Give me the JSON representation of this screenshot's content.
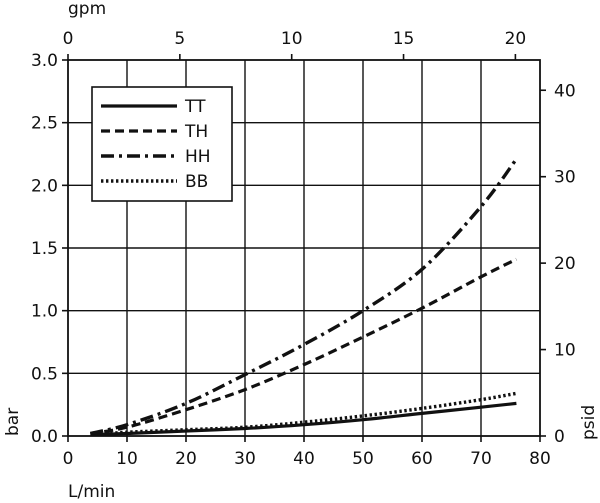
{
  "chart_data": {
    "type": "line",
    "title": "",
    "xlabel": "L/min",
    "ylabel": "bar",
    "x2label": "gpm",
    "y2label": "psid",
    "xlim": [
      0,
      80
    ],
    "ylim": [
      0,
      3.0
    ],
    "x2lim": [
      0,
      21.1
    ],
    "y2lim": [
      0,
      43.5
    ],
    "xticks": [
      "0",
      "10",
      "20",
      "30",
      "40",
      "50",
      "60",
      "70",
      "80"
    ],
    "xtick_values": [
      0,
      10,
      20,
      30,
      40,
      50,
      60,
      70,
      80
    ],
    "yticks": [
      "0.0",
      "0.5",
      "1.0",
      "1.5",
      "2.0",
      "2.5",
      "3.0"
    ],
    "ytick_values": [
      0,
      0.5,
      1.0,
      1.5,
      2.0,
      2.5,
      3.0
    ],
    "x2ticks": [
      "0",
      "5",
      "10",
      "15",
      "20"
    ],
    "x2tick_values": [
      0,
      5,
      10,
      15,
      20
    ],
    "y2ticks": [
      "0",
      "10",
      "20",
      "30",
      "40"
    ],
    "y2tick_values": [
      0,
      10,
      20,
      30,
      40
    ],
    "grid": true,
    "legend_position": "top-left",
    "series": [
      {
        "name": "TT",
        "style": "solid",
        "x": [
          3.8,
          10,
          20,
          30,
          40,
          50,
          60,
          70,
          76
        ],
        "y": [
          0.01,
          0.02,
          0.04,
          0.06,
          0.09,
          0.13,
          0.18,
          0.23,
          0.26
        ]
      },
      {
        "name": "TH",
        "style": "dashed",
        "x": [
          3.8,
          10,
          20,
          30,
          40,
          50,
          60,
          70,
          76
        ],
        "y": [
          0.02,
          0.07,
          0.21,
          0.37,
          0.57,
          0.79,
          1.02,
          1.27,
          1.41
        ]
      },
      {
        "name": "HH",
        "style": "dash-dot",
        "x": [
          3.8,
          10,
          20,
          30,
          40,
          50,
          60,
          70,
          76
        ],
        "y": [
          0.02,
          0.09,
          0.26,
          0.49,
          0.73,
          1.0,
          1.33,
          1.83,
          2.21
        ]
      },
      {
        "name": "BB",
        "style": "dotted",
        "x": [
          3.8,
          10,
          20,
          30,
          40,
          50,
          60,
          70,
          76
        ],
        "y": [
          0.01,
          0.03,
          0.05,
          0.07,
          0.11,
          0.16,
          0.22,
          0.29,
          0.34
        ]
      }
    ]
  }
}
